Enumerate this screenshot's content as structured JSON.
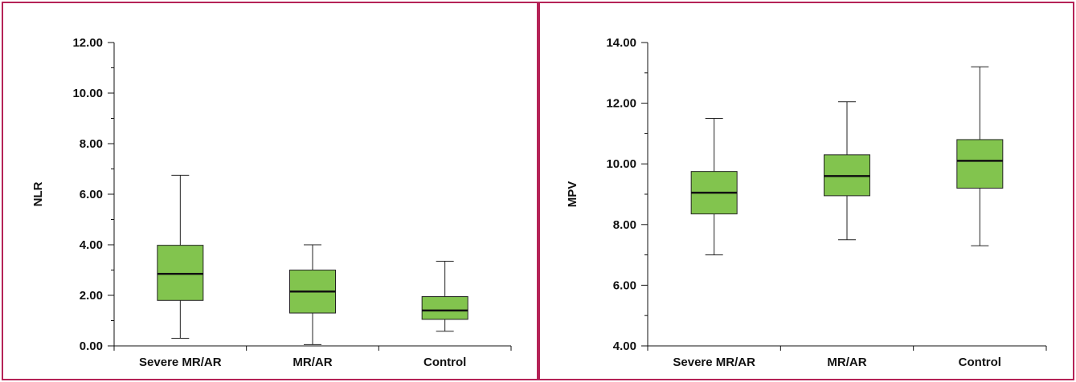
{
  "colors": {
    "border": "#b52357",
    "box_fill": "#82c44e",
    "line": "#222222"
  },
  "chart_data": [
    {
      "type": "box",
      "ylabel": "NLR",
      "ylim": [
        0,
        12
      ],
      "y_ticks": [
        0,
        2,
        4,
        6,
        8,
        10,
        12
      ],
      "y_tick_labels": [
        "0.00",
        "2.00",
        "4.00",
        "6.00",
        "8.00",
        "10.00",
        "12.00"
      ],
      "categories": [
        "Severe MR/AR",
        "MR/AR",
        "Control"
      ],
      "boxes": [
        {
          "min": 0.3,
          "q1": 1.8,
          "median": 2.85,
          "q3": 3.98,
          "max": 6.75
        },
        {
          "min": 0.05,
          "q1": 1.3,
          "median": 2.15,
          "q3": 3.0,
          "max": 4.0
        },
        {
          "min": 0.58,
          "q1": 1.05,
          "median": 1.4,
          "q3": 1.95,
          "max": 3.35
        }
      ]
    },
    {
      "type": "box",
      "ylabel": "MPV",
      "ylim": [
        4,
        14
      ],
      "y_ticks": [
        4,
        6,
        8,
        10,
        12,
        14
      ],
      "y_tick_labels": [
        "4.00",
        "6.00",
        "8.00",
        "10.00",
        "12.00",
        "14.00"
      ],
      "categories": [
        "Severe MR/AR",
        "MR/AR",
        "Control"
      ],
      "boxes": [
        {
          "min": 7.0,
          "q1": 8.35,
          "median": 9.05,
          "q3": 9.75,
          "max": 11.5
        },
        {
          "min": 7.5,
          "q1": 8.95,
          "median": 9.6,
          "q3": 10.3,
          "max": 12.05
        },
        {
          "min": 7.3,
          "q1": 9.2,
          "median": 10.1,
          "q3": 10.8,
          "max": 13.2
        }
      ]
    }
  ]
}
